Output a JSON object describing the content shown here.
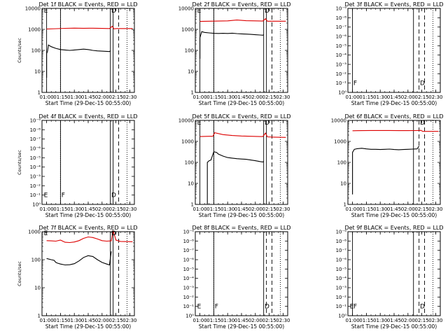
{
  "figure": {
    "background": "#ffffff",
    "axis_color": "#000000",
    "events_color": "#000000",
    "lld_color": "#dd0000"
  },
  "chart_data": [
    {
      "type": "line",
      "panel": "1f",
      "title": "Det 1f BLACK = Events, RED = LLD",
      "xlabel": "Start Time (29-Dec-15 00:55:00)",
      "ylabel": "Counts/sec",
      "ylim": [
        1,
        10000
      ],
      "yscale": "log",
      "xlim": [
        "00:55",
        "02:35"
      ],
      "ytick_style": "decimal",
      "yticks": [
        "1",
        "10",
        "100",
        "1000",
        "10000"
      ],
      "xticks": [
        "01:00",
        "01:15",
        "01:30",
        "01:45",
        "02:00",
        "02:15",
        "02:30"
      ],
      "markers": {
        "solid": [
          "01:00",
          "01:15",
          "02:09",
          "02:12"
        ],
        "dashed": [
          "02:18"
        ],
        "dotted": [
          "01:15",
          "02:27"
        ]
      },
      "marker_labels": [
        {
          "text": "E",
          "x": "00:57",
          "y": 8000
        },
        {
          "text": "D",
          "x": "02:10",
          "y": 8000
        }
      ],
      "series": [
        {
          "name": "Events",
          "color": "#000000",
          "x": [
            "01:00",
            "01:00",
            "01:01",
            "01:02",
            "01:05",
            "01:10",
            "01:15",
            "01:20",
            "01:25",
            "01:30",
            "01:35",
            "01:40",
            "01:45",
            "01:50",
            "01:55",
            "02:00",
            "02:05",
            "02:08",
            "02:09"
          ],
          "y": [
            5,
            70,
            90,
            180,
            150,
            125,
            110,
            105,
            100,
            105,
            110,
            115,
            110,
            100,
            95,
            92,
            90,
            88,
            95
          ]
        },
        {
          "name": "LLD",
          "color": "#dd0000",
          "x": [
            "01:00",
            "01:10",
            "01:20",
            "01:30",
            "01:40",
            "01:50",
            "02:00",
            "02:08",
            "02:11",
            "02:13",
            "02:15",
            "02:33"
          ],
          "y": [
            1050,
            1080,
            1120,
            1150,
            1130,
            1140,
            1110,
            1100,
            1400,
            1050,
            1100,
            1100
          ]
        }
      ]
    },
    {
      "type": "line",
      "panel": "2f",
      "title": "Det 2f BLACK = Events, RED = LLD",
      "xlabel": "Start Time (29-Dec-15 00:55:00)",
      "ylabel": "",
      "ylim": [
        1,
        10000
      ],
      "yscale": "log",
      "xlim": [
        "00:55",
        "02:35"
      ],
      "ytick_style": "decimal",
      "yticks": [
        "1",
        "10",
        "100",
        "1000",
        "10000"
      ],
      "xticks": [
        "01:00",
        "01:15",
        "01:30",
        "01:45",
        "02:00",
        "02:15",
        "02:30"
      ],
      "markers": {
        "solid": [
          "01:00",
          "01:15",
          "02:09",
          "02:12"
        ],
        "dashed": [
          "02:18"
        ],
        "dotted": [
          "01:15",
          "02:27"
        ]
      },
      "marker_labels": [
        {
          "text": "E",
          "x": "00:57",
          "y": 8000
        },
        {
          "text": "D",
          "x": "02:10",
          "y": 8000
        }
      ],
      "series": [
        {
          "name": "Events",
          "color": "#000000",
          "x": [
            "01:00",
            "01:00",
            "01:02",
            "01:05",
            "01:10",
            "01:15",
            "01:20",
            "01:25",
            "01:30",
            "01:35",
            "01:40",
            "01:45",
            "01:50",
            "01:55",
            "02:00",
            "02:05",
            "02:08",
            "02:09"
          ],
          "y": [
            40,
            400,
            780,
            720,
            680,
            650,
            640,
            650,
            640,
            660,
            630,
            610,
            600,
            580,
            560,
            540,
            530,
            560
          ]
        },
        {
          "name": "LLD",
          "color": "#dd0000",
          "x": [
            "01:00",
            "01:10",
            "01:20",
            "01:30",
            "01:40",
            "01:45",
            "01:50",
            "02:00",
            "02:08",
            "02:11",
            "02:13",
            "02:33"
          ],
          "y": [
            2400,
            2450,
            2500,
            2550,
            2800,
            2700,
            2600,
            2550,
            2500,
            3200,
            2450,
            2450
          ]
        }
      ]
    },
    {
      "type": "line",
      "panel": "3f",
      "title": "Det 3f BLACK = Events, RED = LLD",
      "xlabel": "Start Time (29-Dec-15 00:55:00)",
      "ylabel": "",
      "ylim": [
        1,
        10
      ],
      "yscale": "log",
      "xlim": [
        "00:55",
        "02:35"
      ],
      "ytick_style": "exp",
      "yticks": [
        "10⁰",
        "10⁻¹",
        "10⁻²",
        "10⁻³",
        "10⁻⁴",
        "10⁻⁵",
        "10⁻⁶",
        "10⁻⁷",
        "10⁻⁸",
        "10⁻⁹"
      ],
      "xticks": [
        "01:00",
        "01:15",
        "01:30",
        "01:45",
        "02:00",
        "02:15",
        "02:30"
      ],
      "markers": {
        "solid": [
          "01:00",
          "02:06"
        ],
        "dashed": [
          "02:12",
          "02:18"
        ],
        "dotted": [
          "02:27"
        ]
      },
      "marker_labels": [
        {
          "text": "F",
          "x": "01:01",
          "y": 1.3
        },
        {
          "text": "D",
          "x": "02:13",
          "y": 1.3
        }
      ],
      "series": []
    },
    {
      "type": "line",
      "panel": "4f",
      "title": "Det 4f BLACK = Events, RED = LLD",
      "xlabel": "Start Time (29-Dec-15 00:55:00)",
      "ylabel": "Counts/sec",
      "ylim": [
        1,
        10
      ],
      "yscale": "log",
      "xlim": [
        "00:55",
        "02:35"
      ],
      "ytick_style": "exp",
      "yticks": [
        "10⁰",
        "10⁻¹",
        "10⁻²",
        "10⁻³",
        "10⁻⁴",
        "10⁻⁵",
        "10⁻⁶",
        "10⁻⁷",
        "10⁻⁸",
        "10⁻⁹"
      ],
      "xticks": [
        "01:00",
        "01:15",
        "01:30",
        "01:45",
        "02:00",
        "02:15",
        "02:30"
      ],
      "markers": {
        "solid": [
          "01:15",
          "02:09",
          "02:12"
        ],
        "dashed": [
          "02:18"
        ],
        "dotted": [
          "01:15",
          "02:27"
        ]
      },
      "marker_labels": [
        {
          "text": "E",
          "x": "00:57",
          "y": 1.3
        },
        {
          "text": "F",
          "x": "01:16",
          "y": 1.3
        },
        {
          "text": "D",
          "x": "02:10",
          "y": 1.3
        }
      ],
      "series": []
    },
    {
      "type": "line",
      "panel": "5f",
      "title": "Det 5f BLACK = Events, RED = LLD",
      "xlabel": "Start Time (29-Dec-15 00:55:00)",
      "ylabel": "",
      "ylim": [
        1,
        10000
      ],
      "yscale": "log",
      "xlim": [
        "00:55",
        "02:35"
      ],
      "ytick_style": "decimal",
      "yticks": [
        "1",
        "10",
        "100",
        "1000",
        "10000"
      ],
      "xticks": [
        "01:00",
        "01:15",
        "01:30",
        "01:45",
        "02:00",
        "02:15",
        "02:30"
      ],
      "markers": {
        "solid": [
          "01:00",
          "01:15",
          "02:09",
          "02:12"
        ],
        "dashed": [
          "02:18"
        ],
        "dotted": [
          "01:15",
          "02:27"
        ]
      },
      "marker_labels": [
        {
          "text": "E",
          "x": "00:57",
          "y": 8000
        },
        {
          "text": "D",
          "x": "02:10",
          "y": 8000
        }
      ],
      "series": [
        {
          "name": "Events",
          "color": "#000000",
          "x": [
            "01:08",
            "01:08",
            "01:10",
            "01:12",
            "01:15",
            "01:18",
            "01:20",
            "01:25",
            "01:30",
            "01:35",
            "01:40",
            "01:45",
            "01:50",
            "01:55",
            "02:00",
            "02:05",
            "02:08",
            "02:09"
          ],
          "y": [
            1,
            100,
            120,
            130,
            320,
            300,
            250,
            200,
            170,
            160,
            150,
            145,
            140,
            130,
            120,
            110,
            105,
            110
          ]
        },
        {
          "name": "LLD",
          "color": "#dd0000",
          "x": [
            "01:00",
            "01:10",
            "01:14",
            "01:16",
            "01:25",
            "01:35",
            "01:45",
            "01:55",
            "02:05",
            "02:08",
            "02:11",
            "02:13",
            "02:20",
            "02:33"
          ],
          "y": [
            1700,
            1750,
            1750,
            2600,
            2100,
            1900,
            1800,
            1750,
            1700,
            1700,
            2500,
            1650,
            1600,
            1550
          ]
        }
      ]
    },
    {
      "type": "line",
      "panel": "6f",
      "title": "Det 6f BLACK = Events, RED = LLD",
      "xlabel": "Start Time (29-Dec-15 00:55:00)",
      "ylabel": "",
      "ylim": [
        1,
        10000
      ],
      "yscale": "log",
      "xlim": [
        "00:55",
        "02:35"
      ],
      "ytick_style": "decimal",
      "yticks": [
        "1",
        "10",
        "100",
        "1000",
        "10000"
      ],
      "xticks": [
        "01:00",
        "01:15",
        "01:30",
        "01:45",
        "02:00",
        "02:15",
        "02:30"
      ],
      "markers": {
        "solid": [
          "02:06"
        ],
        "dashed": [
          "02:12",
          "02:18"
        ],
        "dotted": [
          "02:27"
        ]
      },
      "marker_labels": [
        {
          "text": "D",
          "x": "02:13",
          "y": 8000
        }
      ],
      "series": [
        {
          "name": "Events",
          "color": "#000000",
          "x": [
            "01:00",
            "01:00",
            "01:02",
            "01:05",
            "01:10",
            "01:15",
            "01:20",
            "01:25",
            "01:30",
            "01:35",
            "01:40",
            "01:45",
            "01:50",
            "01:55",
            "02:00",
            "02:05",
            "02:10",
            "02:12"
          ],
          "y": [
            3,
            300,
            420,
            450,
            470,
            440,
            420,
            420,
            410,
            420,
            430,
            410,
            400,
            410,
            420,
            430,
            440,
            600
          ]
        },
        {
          "name": "LLD",
          "color": "#dd0000",
          "x": [
            "01:00",
            "01:10",
            "01:20",
            "01:30",
            "01:40",
            "01:50",
            "02:00",
            "02:10",
            "02:14",
            "02:16",
            "02:33"
          ],
          "y": [
            3200,
            3250,
            3300,
            3300,
            3300,
            3250,
            3250,
            3300,
            3350,
            3000,
            3000
          ]
        }
      ]
    },
    {
      "type": "line",
      "panel": "7f",
      "title": "Det 7f BLACK = Events, RED = LLD",
      "xlabel": "Start Time (29-Dec-15 00:55:00)",
      "ylabel": "Counts/sec",
      "ylim": [
        1,
        1000
      ],
      "yscale": "log",
      "xlim": [
        "00:55",
        "02:35"
      ],
      "ytick_style": "decimal",
      "yticks": [
        "1",
        "10",
        "100",
        "1000"
      ],
      "xticks": [
        "01:00",
        "01:15",
        "01:30",
        "01:45",
        "02:00",
        "02:15",
        "02:30"
      ],
      "markers": {
        "solid": [
          "02:09",
          "02:12"
        ],
        "dashed": [
          "02:18"
        ],
        "dotted": [
          "02:27"
        ]
      },
      "marker_labels": [
        {
          "text": "E",
          "x": "00:57",
          "y": 900
        },
        {
          "text": "D",
          "x": "02:10",
          "y": 900
        }
      ],
      "series": [
        {
          "name": "Events",
          "color": "#000000",
          "x": [
            "01:00",
            "01:05",
            "01:08",
            "01:10",
            "01:12",
            "01:15",
            "01:20",
            "01:25",
            "01:30",
            "01:35",
            "01:40",
            "01:45",
            "01:50",
            "01:55",
            "02:00",
            "02:05",
            "02:08",
            "02:10"
          ],
          "y": [
            110,
            100,
            95,
            80,
            75,
            70,
            65,
            66,
            72,
            90,
            120,
            140,
            130,
            100,
            80,
            70,
            65,
            200
          ]
        },
        {
          "name": "LLD",
          "color": "#dd0000",
          "x": [
            "01:00",
            "01:05",
            "01:10",
            "01:15",
            "01:20",
            "01:25",
            "01:30",
            "01:35",
            "01:40",
            "01:45",
            "01:50",
            "01:55",
            "02:00",
            "02:05",
            "02:10",
            "02:12",
            "02:15",
            "02:20",
            "02:33"
          ],
          "y": [
            480,
            470,
            460,
            500,
            420,
            410,
            430,
            480,
            580,
            650,
            620,
            550,
            480,
            460,
            470,
            1100,
            500,
            450,
            440
          ]
        }
      ]
    },
    {
      "type": "line",
      "panel": "8f",
      "title": "Det 8f BLACK = Events, RED = LLD",
      "xlabel": "Start Time (29-Dec-15 00:55:00)",
      "ylabel": "",
      "ylim": [
        1,
        10
      ],
      "yscale": "log",
      "xlim": [
        "00:55",
        "02:35"
      ],
      "ytick_style": "exp",
      "yticks": [
        "10⁰",
        "10⁻¹",
        "10⁻²",
        "10⁻³",
        "10⁻⁴",
        "10⁻⁵",
        "10⁻⁶",
        "10⁻⁷",
        "10⁻⁸",
        "10⁻⁹"
      ],
      "xticks": [
        "01:00",
        "01:15",
        "01:30",
        "01:45",
        "02:00",
        "02:15",
        "02:30"
      ],
      "markers": {
        "solid": [
          "01:15",
          "02:09"
        ],
        "dashed": [
          "02:12",
          "02:18"
        ],
        "dotted": [
          "01:15",
          "02:27"
        ]
      },
      "marker_labels": [
        {
          "text": "E",
          "x": "00:57",
          "y": 1.3
        },
        {
          "text": "F",
          "x": "01:16",
          "y": 1.3
        },
        {
          "text": "D",
          "x": "02:10",
          "y": 1.3
        }
      ],
      "series": []
    },
    {
      "type": "line",
      "panel": "9f",
      "title": "Det 9f BLACK = Events, RED = LLD",
      "xlabel": "Start Time (29-Dec-15 00:55:00)",
      "ylabel": "",
      "ylim": [
        1,
        10
      ],
      "yscale": "log",
      "xlim": [
        "00:55",
        "02:35"
      ],
      "ytick_style": "exp",
      "yticks": [
        "10⁰",
        "10⁻¹",
        "10⁻²",
        "10⁻³",
        "10⁻⁴",
        "10⁻⁵",
        "10⁻⁶",
        "10⁻⁷",
        "10⁻⁸",
        "10⁻⁹"
      ],
      "xticks": [
        "01:00",
        "01:15",
        "01:30",
        "01:45",
        "02:00",
        "02:15",
        "02:30"
      ],
      "markers": {
        "solid": [
          "01:00",
          "02:06"
        ],
        "dashed": [
          "02:12",
          "02:18"
        ],
        "dotted": [
          "02:27"
        ]
      },
      "marker_labels": [
        {
          "text": "E",
          "x": "00:57",
          "y": 1.3
        },
        {
          "text": "F",
          "x": "01:01",
          "y": 1.3
        },
        {
          "text": "D",
          "x": "02:13",
          "y": 1.3
        }
      ],
      "series": []
    }
  ]
}
